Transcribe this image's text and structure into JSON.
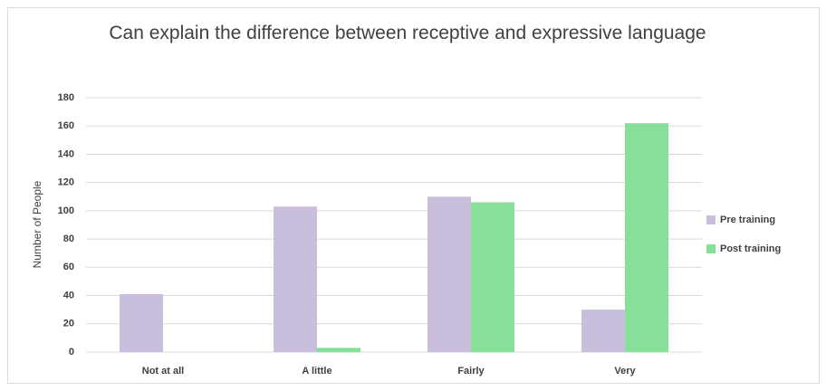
{
  "chart_data": {
    "type": "bar",
    "title": "Can explain the difference between receptive and expressive language",
    "y_label": "Number of People",
    "categories": [
      "Not at all",
      "A little",
      "Fairly",
      "Very"
    ],
    "series": [
      {
        "name": "Pre training",
        "color": "#c9bedc",
        "values": [
          41,
          103,
          110,
          30
        ]
      },
      {
        "name": "Post training",
        "color": "#86e09a",
        "values": [
          0,
          3,
          106,
          162
        ]
      }
    ],
    "ylim": [
      0,
      180
    ],
    "yticks": [
      0,
      20,
      40,
      60,
      80,
      100,
      120,
      140,
      160,
      180
    ],
    "grid": true,
    "legend": "right"
  }
}
